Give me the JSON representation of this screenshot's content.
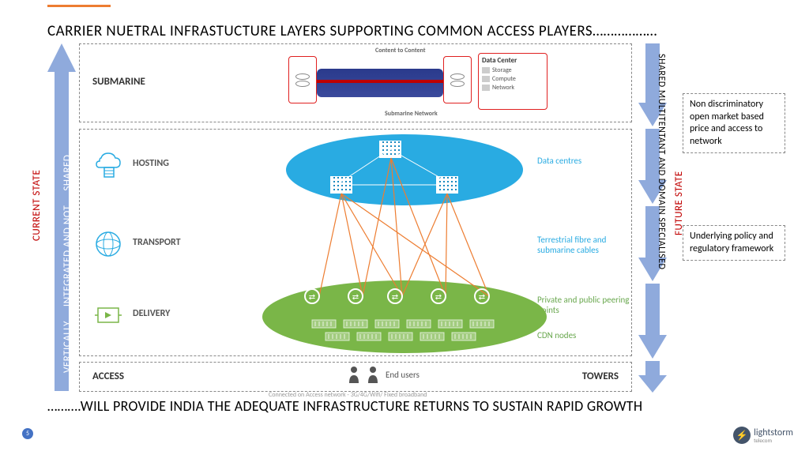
{
  "accent_color": "#ed7d31",
  "title": "CARRIER NUETRAL INFRASTUCTURE LAYERS SUPPORTING COMMON ACCESS PLAYERS………………",
  "footer": "……….WILL PROVIDE INDIA THE ADEQUATE INFRASTRUCTURE RETURNS TO SUSTAIN RAPID GROWTH",
  "page_number": "5",
  "logo": {
    "name": "lightstorm",
    "sub": "telecom"
  },
  "left": {
    "label1": "CURRENT STATE",
    "label2_a": "VERTICALLY",
    "label2_b": "INTEGRATED AND NOT",
    "label2_c": "SHARED",
    "arrow_fill": "#8faadc",
    "label1_color": "#c00000"
  },
  "right": {
    "label1": "SHARED MULTITENTANT AND DOMAIN SPECIALISED",
    "label2": "FUTURE  STATE",
    "arrow_fill": "#8faadc",
    "box1": "Non discriminatory open market based price and access to network",
    "box2": "Underlying policy and regulatory framework"
  },
  "layers": {
    "submarine": "SUBMARINE",
    "hosting": "HOSTING",
    "transport": "TRANSPORT",
    "delivery": "DELIVERY",
    "access": "ACCESS",
    "towers": "TOWERS"
  },
  "submarine_graphic": {
    "top_caption": "Content to Content",
    "bottom_caption": "Submarine Network",
    "dc_title": "Data Center",
    "dc_rows": [
      "Storage",
      "Compute",
      "Network"
    ]
  },
  "annotations": {
    "data_centres": "Data centres",
    "terrestrial": "Terrestrial fibre and submarine cables",
    "peering": "Private and public peering points",
    "cdn": "CDN nodes",
    "end_users": "End users",
    "end_caption": "Connected on  Access network - 3G/4G/Wifi/ Fixed broadband"
  },
  "colors": {
    "hosting_cloud": "#29abe2",
    "delivery_cloud": "#7ab648",
    "fibre_line": "#ed7d31",
    "arrow_fill": "#8faadc",
    "red_box": "#e02020"
  },
  "peering_points_x": [
    295,
    350,
    400,
    455,
    510
  ],
  "cdn_nodes": [
    [
      295,
      350
    ],
    [
      335,
      350
    ],
    [
      375,
      350
    ],
    [
      415,
      350
    ],
    [
      455,
      350
    ],
    [
      495,
      350
    ],
    [
      312,
      366
    ],
    [
      352,
      366
    ],
    [
      392,
      366
    ],
    [
      432,
      366
    ],
    [
      472,
      366
    ]
  ],
  "fibre_lines": [
    [
      332,
      190,
      304,
      320
    ],
    [
      332,
      190,
      359,
      320
    ],
    [
      395,
      145,
      359,
      320
    ],
    [
      395,
      145,
      409,
      320
    ],
    [
      332,
      190,
      409,
      320
    ],
    [
      466,
      190,
      409,
      320
    ],
    [
      466,
      190,
      464,
      320
    ],
    [
      395,
      145,
      464,
      320
    ],
    [
      466,
      190,
      519,
      320
    ],
    [
      332,
      190,
      519,
      320
    ]
  ],
  "dc_interconnect": [
    [
      394,
      134,
      332,
      175
    ],
    [
      394,
      134,
      466,
      175
    ],
    [
      346,
      179,
      452,
      179
    ]
  ]
}
